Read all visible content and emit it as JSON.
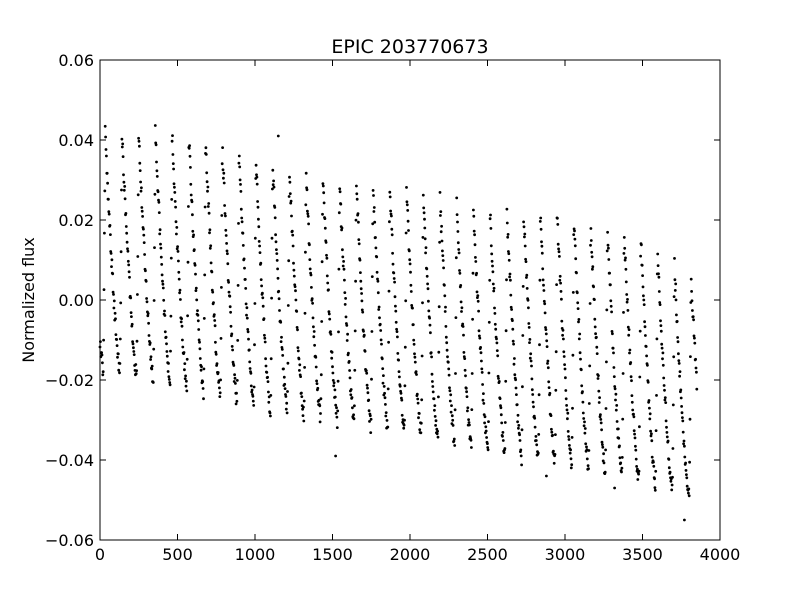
{
  "chart_data": {
    "type": "scatter",
    "title": "EPIC 203770673",
    "xlabel": "",
    "ylabel": "Normalized flux",
    "xlim": [
      0,
      4000
    ],
    "ylim": [
      -0.06,
      0.06
    ],
    "grid": false,
    "legend": "none",
    "marker_color": "#000000",
    "xticks": [
      0,
      500,
      1000,
      1500,
      2000,
      2500,
      3000,
      3500,
      4000
    ],
    "yticks": [
      -0.06,
      -0.04,
      -0.02,
      0.0,
      0.02,
      0.04,
      0.06
    ],
    "x_tick_labels": [
      "0",
      "500",
      "1000",
      "1500",
      "2000",
      "2500",
      "3000",
      "3500",
      "4000"
    ],
    "y_tick_labels": [
      "−0.06",
      "−0.04",
      "−0.02",
      "0.00",
      "0.02",
      "0.04",
      "0.06"
    ],
    "series": [
      {
        "x_range": [
          0,
          3850
        ],
        "period": 108,
        "n_cycles": 36,
        "max_envelope": [
          [
            0,
            0.042
          ],
          [
            500,
            0.042
          ],
          [
            1000,
            0.036
          ],
          [
            1500,
            0.03
          ],
          [
            2000,
            0.028
          ],
          [
            2500,
            0.022
          ],
          [
            3000,
            0.022
          ],
          [
            3500,
            0.016
          ],
          [
            3850,
            0.005
          ]
        ],
        "min_envelope": [
          [
            0,
            -0.017
          ],
          [
            500,
            -0.021
          ],
          [
            1000,
            -0.027
          ],
          [
            1500,
            -0.03
          ],
          [
            2000,
            -0.033
          ],
          [
            2500,
            -0.038
          ],
          [
            3000,
            -0.041
          ],
          [
            3500,
            -0.045
          ],
          [
            3850,
            -0.05
          ]
        ],
        "outliers": [
          {
            "x": 1150,
            "y": 0.041
          },
          {
            "x": 1520,
            "y": -0.039
          },
          {
            "x": 2880,
            "y": -0.044
          },
          {
            "x": 3770,
            "y": -0.055
          },
          {
            "x": 3320,
            "y": -0.047
          }
        ]
      }
    ]
  }
}
